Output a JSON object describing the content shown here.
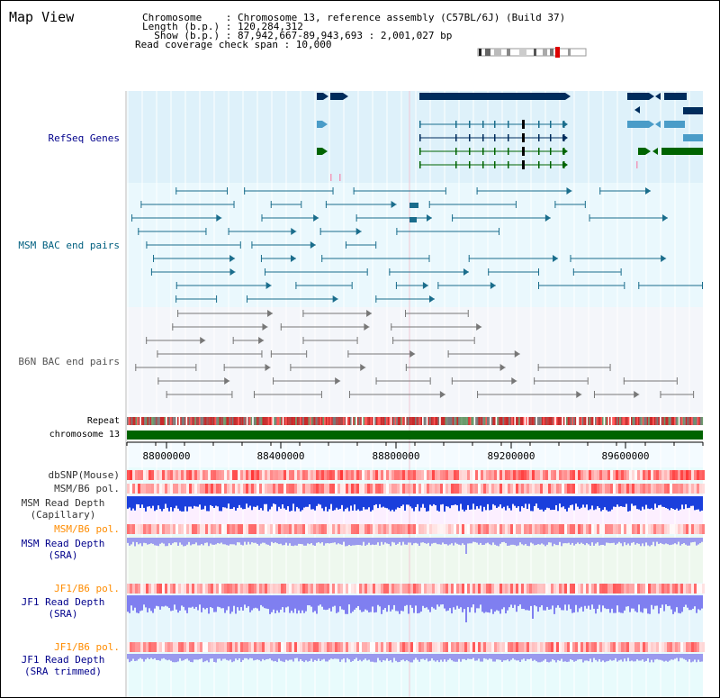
{
  "title": "Map View",
  "header": {
    "rows": [
      {
        "key": "Chromosome   ",
        "value": ": Chromosome 13, reference assembly (C57BL/6J) (Build 37)"
      },
      {
        "key": "Length (b.p.)",
        "value": ": 120,284,312"
      },
      {
        "key": "  Show (b.p.)",
        "value": ": 87,942,667-89,943,693 : 2,001,027 bp"
      }
    ],
    "coverage": "Read coverage check span : 10,000"
  },
  "tracks": {
    "refseq": "RefSeq Genes",
    "msm_bac": "MSM BAC end pairs",
    "b6n_bac": "B6N BAC end pairs",
    "repeat": "Repeat",
    "chromosome": "chromosome 13",
    "dbsnp": "dbSNP(Mouse)",
    "msm_b6_pol_1": "MSM/B6 pol.",
    "msm_depth_cap_1": "MSM Read Depth",
    "msm_depth_cap_2": "(Capillary)",
    "msm_b6_pol_2": "MSM/B6 pol.",
    "msm_depth_sra_1": "MSM Read Depth",
    "msm_depth_sra_2": "(SRA)",
    "jf1_b6_pol_1": "JF1/B6 pol.",
    "jf1_depth_sra_1": "JF1 Read Depth",
    "jf1_depth_sra_2": "(SRA)",
    "jf1_b6_pol_2": "JF1/B6 pol.",
    "jf1_depth_trim_1": "JF1 Read Depth",
    "jf1_depth_trim_2": "(SRA trimmed)"
  },
  "axis": {
    "range": [
      87942667,
      89943693
    ],
    "ticks": [
      "88000000",
      "88400000",
      "88800000",
      "89200000",
      "89600000"
    ]
  },
  "colors": {
    "refseq_label": "#00008b",
    "msm_label": "#005f7f",
    "b6n_label": "#555555",
    "pol_msm_label": "#ff8c00",
    "pol_jf1_label": "#ff8c00",
    "depth_label": "#00008b",
    "gene_dark": "#002c5c",
    "gene_mid": "#1a6d8c",
    "gene_light": "#4a9cc8",
    "gene_green": "#006400",
    "chrom_bar": "#006400"
  }
}
